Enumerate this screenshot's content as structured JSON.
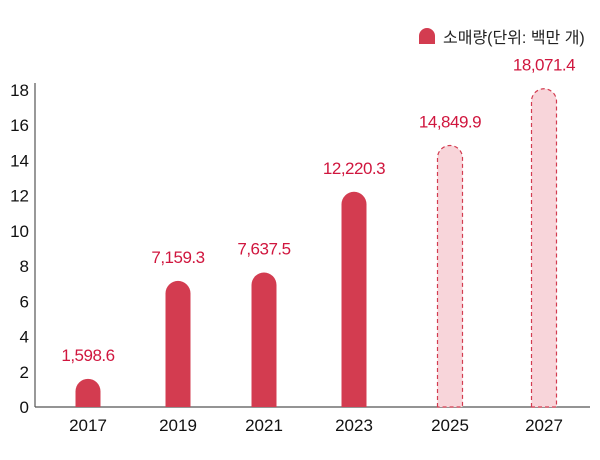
{
  "chart_data": {
    "type": "bar",
    "legend": "소매량(단위: 백만 개)",
    "legend_position": "top-right",
    "categories": [
      "2017",
      "2019",
      "2021",
      "2023",
      "2025",
      "2027"
    ],
    "values": [
      1598.6,
      7159.3,
      7637.5,
      12220.3,
      14849.9,
      18071.4
    ],
    "value_labels": [
      "1,598.6",
      "7,159.3",
      "7,637.5",
      "12,220.3",
      "14,849.9",
      "18,071.4"
    ],
    "projected": [
      false,
      false,
      false,
      false,
      true,
      true
    ],
    "yticks": [
      "0",
      "2",
      "4",
      "6",
      "8",
      "10",
      "12",
      "14",
      "16",
      "18"
    ],
    "ylim": [
      0,
      18000
    ],
    "grid": false,
    "colors": {
      "bar": "#d33c50",
      "projected_fill": "#f8d5da",
      "projected_border": "#d33c50",
      "label": "#d0163e"
    }
  }
}
